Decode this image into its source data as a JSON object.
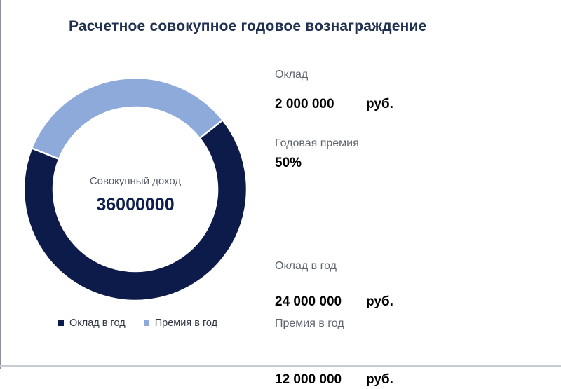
{
  "title": "Расчетное совокупное годовое вознаграждение",
  "center": {
    "label": "Совокупный доход",
    "value": "36000000"
  },
  "colors": {
    "salary": "#0c1b4a",
    "bonus": "#8eaadb",
    "title": "#1f3050"
  },
  "chart_data": {
    "type": "pie",
    "variant": "donut",
    "categories": [
      "Оклад в год",
      "Премия в год"
    ],
    "values": [
      24000000,
      12000000
    ],
    "colors": [
      "#0c1b4a",
      "#8eaadb"
    ],
    "legend_position": "bottom"
  },
  "legend": [
    {
      "label": "Оклад в год",
      "color": "#0c1b4a"
    },
    {
      "label": "Премия в год",
      "color": "#8eaadb"
    }
  ],
  "info": {
    "salary_label": "Оклад",
    "salary_value": "2 000 000",
    "salary_unit": "руб.",
    "bonus_label": "Годовая премия",
    "bonus_value": "50%",
    "annual_salary_label": "Оклад в год",
    "annual_salary_value": "24 000 000",
    "annual_salary_unit": "руб.",
    "annual_bonus_label": "Премия в год",
    "annual_bonus_value": "12 000 000",
    "annual_bonus_unit": "руб."
  }
}
